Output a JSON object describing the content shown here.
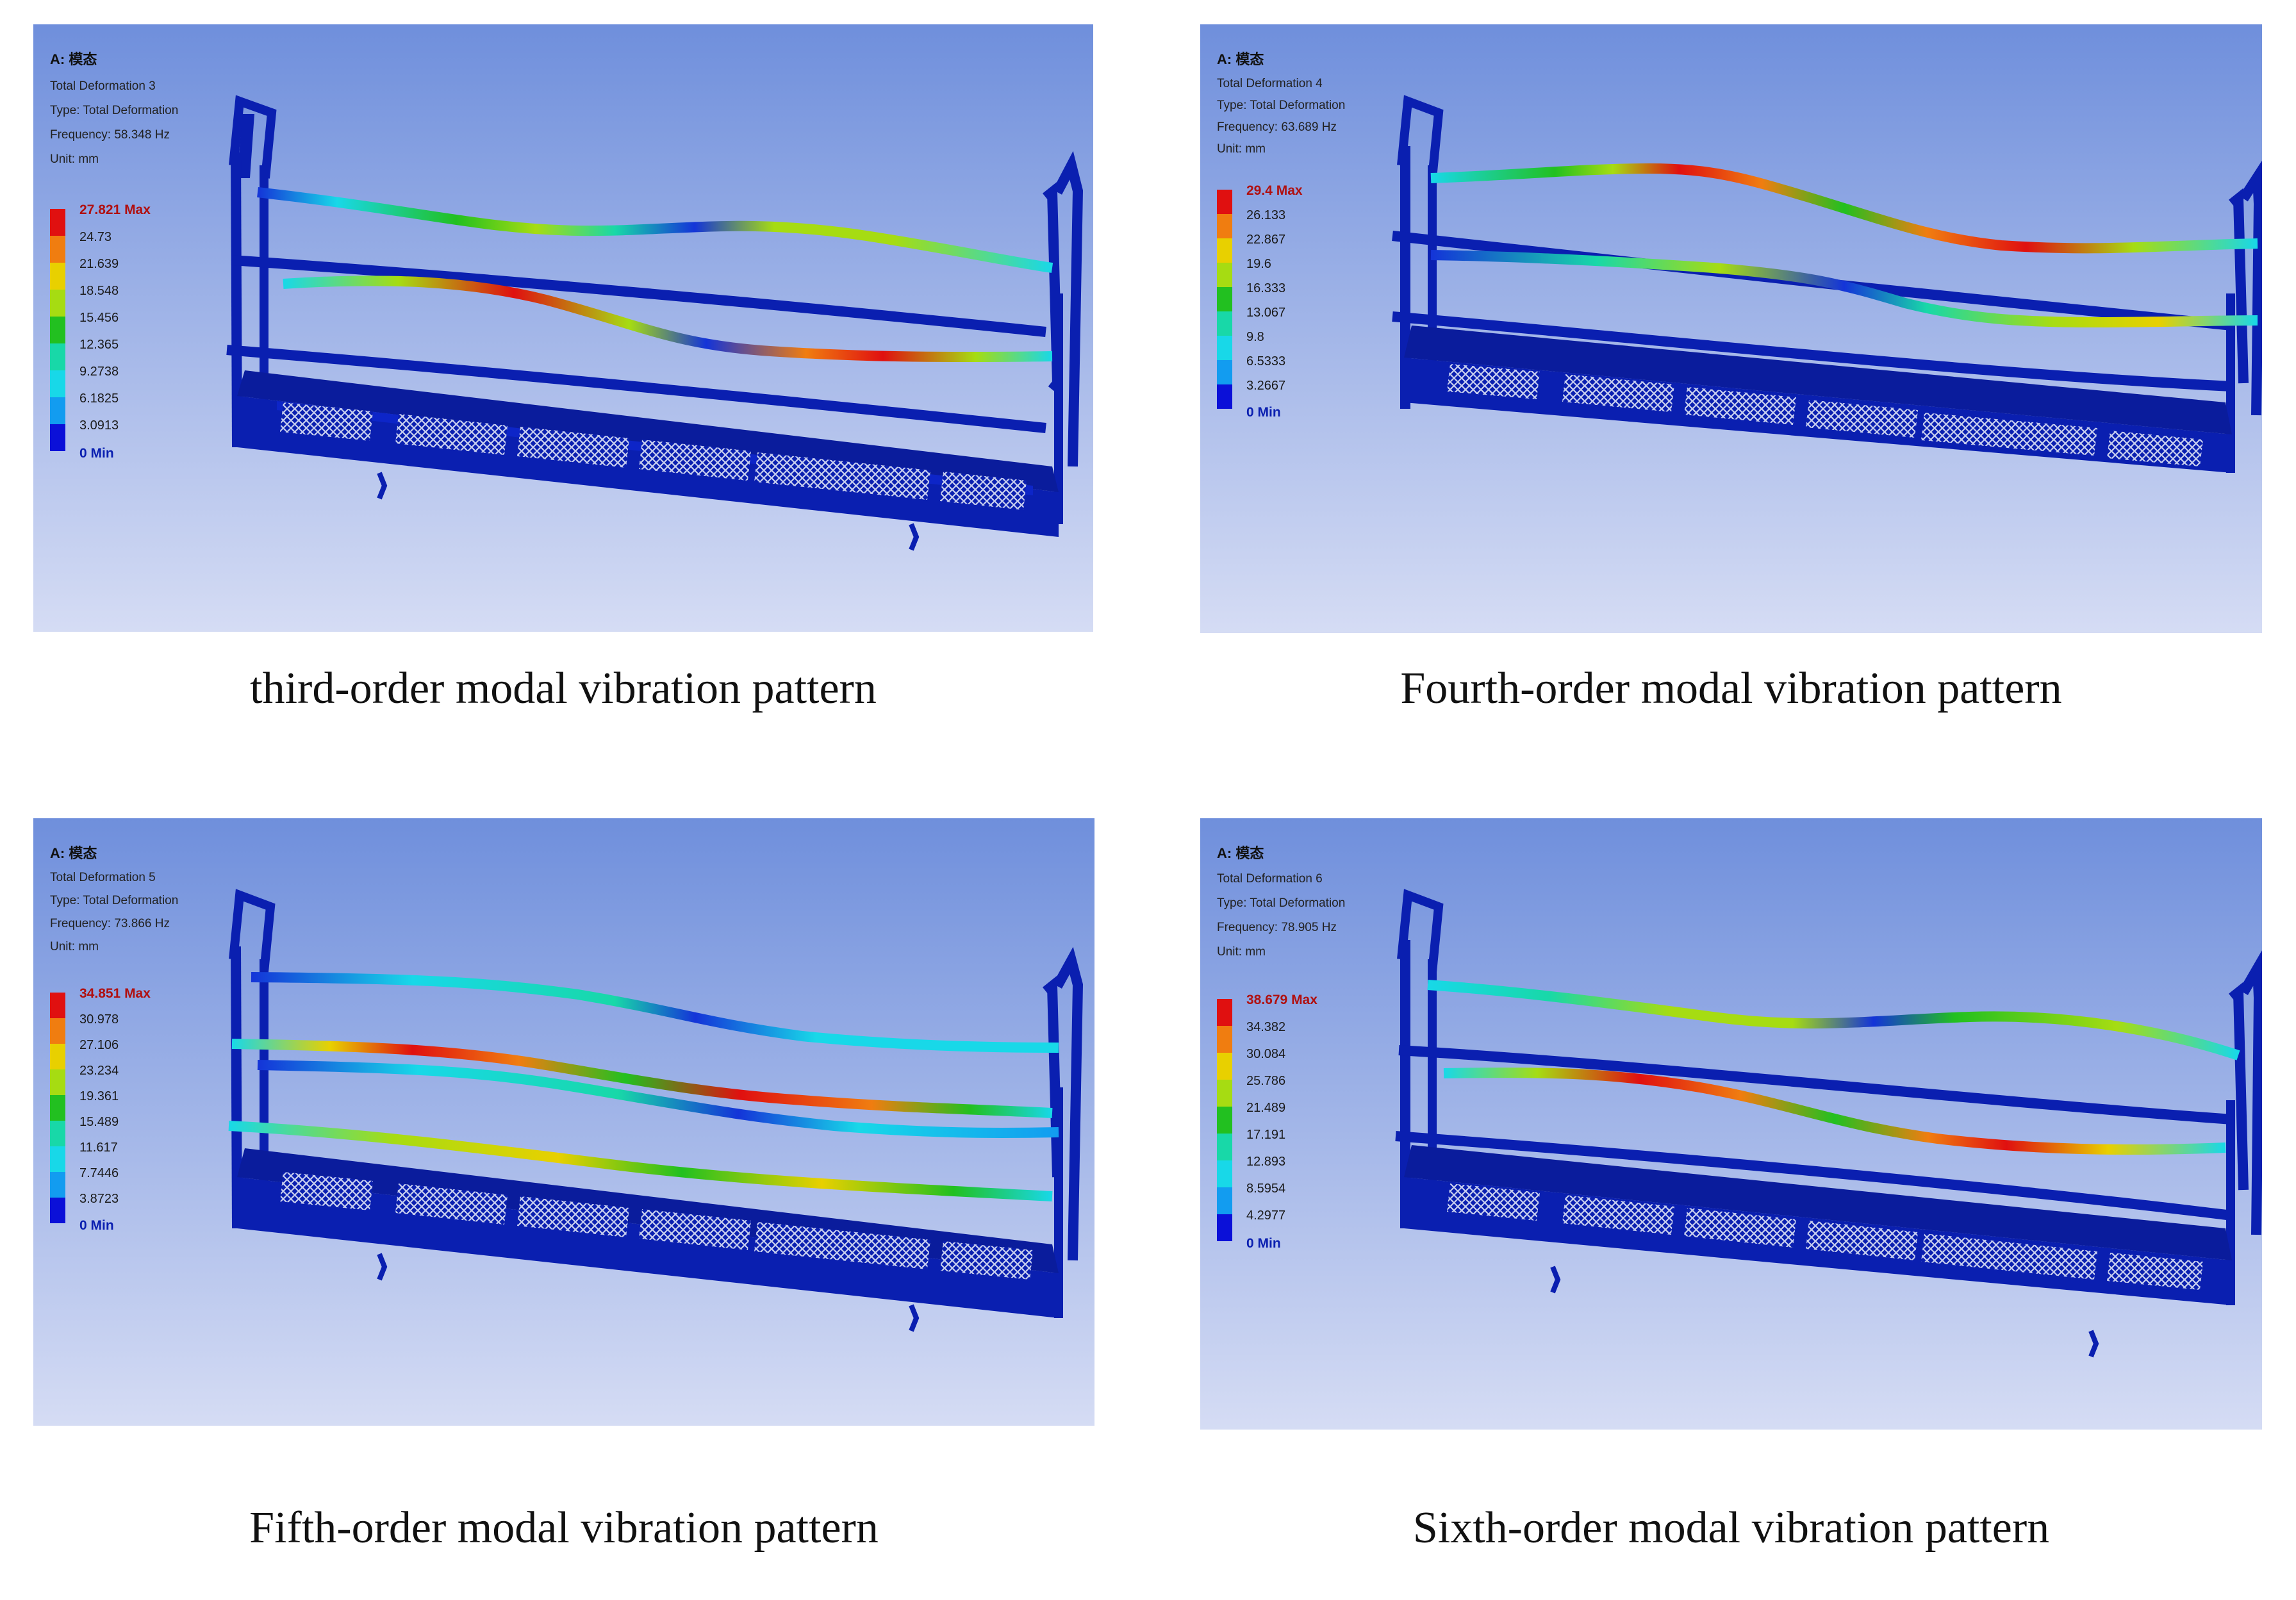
{
  "panels": [
    {
      "caption": "third-order modal vibration pattern",
      "info": {
        "title": "A: 模态",
        "name": "Total Deformation 3",
        "type": "Type: Total Deformation",
        "frequency": "Frequency: 58.348 Hz",
        "unit": "Unit: mm"
      },
      "legend": {
        "max_label": "27.821 Max",
        "values": [
          "24.73",
          "21.639",
          "18.548",
          "15.456",
          "12.365",
          "9.2738",
          "6.1825",
          "3.0913"
        ],
        "min_label": "0 Min"
      }
    },
    {
      "caption": "Fourth-order modal vibration pattern",
      "info": {
        "title": "A: 模态",
        "name": "Total Deformation 4",
        "type": "Type: Total Deformation",
        "frequency": "Frequency: 63.689 Hz",
        "unit": "Unit: mm"
      },
      "legend": {
        "max_label": "29.4 Max",
        "values": [
          "26.133",
          "22.867",
          "19.6",
          "16.333",
          "13.067",
          "9.8",
          "6.5333",
          "3.2667"
        ],
        "min_label": "0 Min"
      }
    },
    {
      "caption": "Fifth-order modal vibration pattern",
      "info": {
        "title": "A: 模态",
        "name": "Total Deformation 5",
        "type": "Type: Total Deformation",
        "frequency": "Frequency: 73.866 Hz",
        "unit": "Unit: mm"
      },
      "legend": {
        "max_label": "34.851 Max",
        "values": [
          "30.978",
          "27.106",
          "23.234",
          "19.361",
          "15.489",
          "11.617",
          "7.7446",
          "3.8723"
        ],
        "min_label": "0 Min"
      }
    },
    {
      "caption": "Sixth-order modal vibration pattern",
      "info": {
        "title": "A: 模态",
        "name": "Total Deformation 6",
        "type": "Type: Total Deformation",
        "frequency": "Frequency: 78.905 Hz",
        "unit": "Unit: mm"
      },
      "legend": {
        "max_label": "38.679 Max",
        "values": [
          "34.382",
          "30.084",
          "25.786",
          "21.489",
          "17.191",
          "12.893",
          "8.5954",
          "4.2977"
        ],
        "min_label": "0 Min"
      }
    }
  ],
  "colors": {
    "background_top": "#6f8fdc",
    "background_bottom": "#d5dcf4",
    "frame_blue": "#0a1fb0",
    "legend_scale": [
      "#e01010",
      "#f07d10",
      "#e8d000",
      "#a6dc12",
      "#22c020",
      "#18d8a8",
      "#18d8e8",
      "#129cf0",
      "#0b10d8"
    ]
  }
}
